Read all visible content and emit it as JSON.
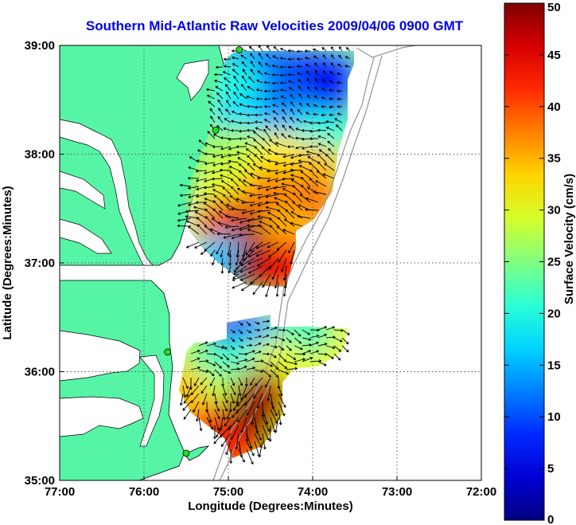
{
  "chart_data": {
    "type": "heatmap",
    "title": "Southern Mid-Atlantic Raw Velocities 2009/04/06 0900 GMT",
    "xlabel": "Longitude (Degrees:Minutes)",
    "ylabel": "Latitude (Degrees:Minutes)",
    "colorbar_label": "Surface Velocity (cm/s)",
    "xlim": [
      -77,
      -72
    ],
    "ylim": [
      35,
      39
    ],
    "x_ticks": [
      -77,
      -76,
      -75,
      -74,
      -73,
      -72
    ],
    "x_tick_labels": [
      "77:00",
      "76:00",
      "75:00",
      "74:00",
      "73:00",
      "72:00"
    ],
    "y_ticks": [
      35,
      36,
      37,
      38,
      39
    ],
    "y_tick_labels": [
      "35:00",
      "36:00",
      "37:00",
      "38:00",
      "39:00"
    ],
    "colorbar_range": [
      0,
      50
    ],
    "colorbar_ticks": [
      0,
      5,
      10,
      15,
      20,
      25,
      30,
      35,
      40,
      45,
      50
    ],
    "colorbar_tick_labels": [
      "0",
      "5",
      "10",
      "15",
      "20",
      "25",
      "30",
      "35",
      "40",
      "45",
      "50"
    ],
    "grid": true,
    "colormap": "jet",
    "land_color": "#55f5a5",
    "vector_color": "#000000",
    "title_color": "#0000ee",
    "sites": [
      {
        "lon": -74.87,
        "lat": 38.96
      },
      {
        "lon": -75.15,
        "lat": 38.22
      },
      {
        "lon": -75.72,
        "lat": 36.18
      },
      {
        "lon": -75.5,
        "lat": 35.25
      }
    ],
    "regions": [
      {
        "name": "",
        "grid_bounds": {
          "lon": [
            -75.1,
            -73.6
          ],
          "lat": [
            36.85,
            39.0
          ]
        },
        "points": [
          {
            "lon": -74.8,
            "lat": 38.85,
            "speed": 14
          },
          {
            "lon": -74.4,
            "lat": 38.8,
            "speed": 12
          },
          {
            "lon": -74.0,
            "lat": 38.75,
            "speed": 8
          },
          {
            "lon": -73.75,
            "lat": 38.7,
            "speed": 7
          },
          {
            "lon": -74.9,
            "lat": 38.6,
            "speed": 20
          },
          {
            "lon": -74.3,
            "lat": 38.55,
            "speed": 11
          },
          {
            "lon": -73.9,
            "lat": 38.45,
            "speed": 6
          },
          {
            "lon": -74.85,
            "lat": 38.3,
            "speed": 17
          },
          {
            "lon": -74.2,
            "lat": 38.25,
            "speed": 14
          },
          {
            "lon": -73.9,
            "lat": 38.15,
            "speed": 20
          },
          {
            "lon": -74.9,
            "lat": 38.0,
            "speed": 27
          },
          {
            "lon": -74.4,
            "lat": 37.95,
            "speed": 32
          },
          {
            "lon": -73.95,
            "lat": 37.85,
            "speed": 34
          },
          {
            "lon": -75.0,
            "lat": 37.7,
            "speed": 30
          },
          {
            "lon": -74.5,
            "lat": 37.6,
            "speed": 38
          },
          {
            "lon": -74.0,
            "lat": 37.55,
            "speed": 38
          },
          {
            "lon": -75.05,
            "lat": 37.35,
            "speed": 40
          },
          {
            "lon": -74.7,
            "lat": 37.25,
            "speed": 48
          },
          {
            "lon": -74.3,
            "lat": 37.3,
            "speed": 35
          },
          {
            "lon": -75.05,
            "lat": 37.0,
            "speed": 16
          },
          {
            "lon": -74.6,
            "lat": 36.95,
            "speed": 48
          },
          {
            "lon": -74.25,
            "lat": 36.95,
            "speed": 44
          }
        ]
      },
      {
        "name": "",
        "grid_bounds": {
          "lon": [
            -75.6,
            -73.85
          ],
          "lat": [
            35.2,
            36.6
          ]
        },
        "points": [
          {
            "lon": -74.9,
            "lat": 36.35,
            "speed": 8
          },
          {
            "lon": -74.5,
            "lat": 36.3,
            "speed": 14
          },
          {
            "lon": -74.1,
            "lat": 36.4,
            "speed": 22
          },
          {
            "lon": -75.3,
            "lat": 36.05,
            "speed": 24
          },
          {
            "lon": -74.9,
            "lat": 36.05,
            "speed": 21
          },
          {
            "lon": -74.4,
            "lat": 36.05,
            "speed": 30
          },
          {
            "lon": -75.5,
            "lat": 35.8,
            "speed": 34
          },
          {
            "lon": -75.0,
            "lat": 35.75,
            "speed": 28
          },
          {
            "lon": -74.6,
            "lat": 35.75,
            "speed": 48
          },
          {
            "lon": -75.2,
            "lat": 35.45,
            "speed": 40
          },
          {
            "lon": -74.8,
            "lat": 35.45,
            "speed": 50
          },
          {
            "lon": -75.0,
            "lat": 35.25,
            "speed": 42
          }
        ]
      }
    ]
  }
}
